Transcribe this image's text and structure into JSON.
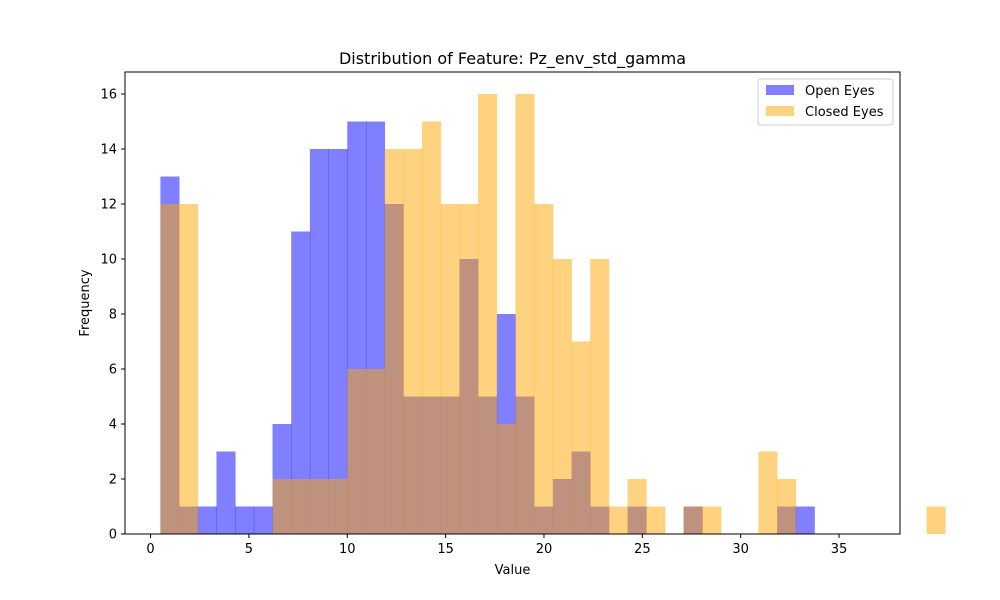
{
  "chart_data": {
    "type": "bar",
    "title": "Distribution of Feature: Pz_env_std_gamma",
    "xlabel": "Value",
    "ylabel": "Frequency",
    "xlim": [
      -1.3,
      38.1
    ],
    "ylim": [
      0,
      16.8
    ],
    "xticks": [
      0,
      5,
      10,
      15,
      20,
      25,
      30,
      35
    ],
    "yticks": [
      0,
      2,
      4,
      6,
      8,
      10,
      12,
      14,
      16
    ],
    "grid": false,
    "legend_position": "top-right",
    "series": [
      {
        "name": "Open Eyes",
        "color": "#0000ff",
        "opacity": 0.5,
        "bin_start": 0.5,
        "bin_width": 0.95,
        "values": [
          13,
          1,
          1,
          3,
          1,
          1,
          4,
          11,
          14,
          14,
          15,
          15,
          12,
          5,
          5,
          5,
          10,
          5,
          8,
          5,
          1,
          2,
          3,
          1,
          0,
          1,
          0,
          0,
          1,
          0,
          0,
          0,
          0,
          1,
          1
        ]
      },
      {
        "name": "Closed Eyes",
        "color": "#ffa500",
        "opacity": 0.5,
        "bin_start": 0.5,
        "bin_width": 0.95,
        "values": [
          12,
          12,
          0,
          0,
          0,
          0,
          2,
          2,
          2,
          2,
          6,
          6,
          14,
          14,
          15,
          12,
          12,
          16,
          4,
          16,
          12,
          10,
          7,
          10,
          1,
          2,
          1,
          0,
          1,
          1,
          0,
          0,
          3,
          2,
          0,
          0,
          0,
          0,
          0,
          0,
          0,
          1
        ]
      }
    ]
  }
}
